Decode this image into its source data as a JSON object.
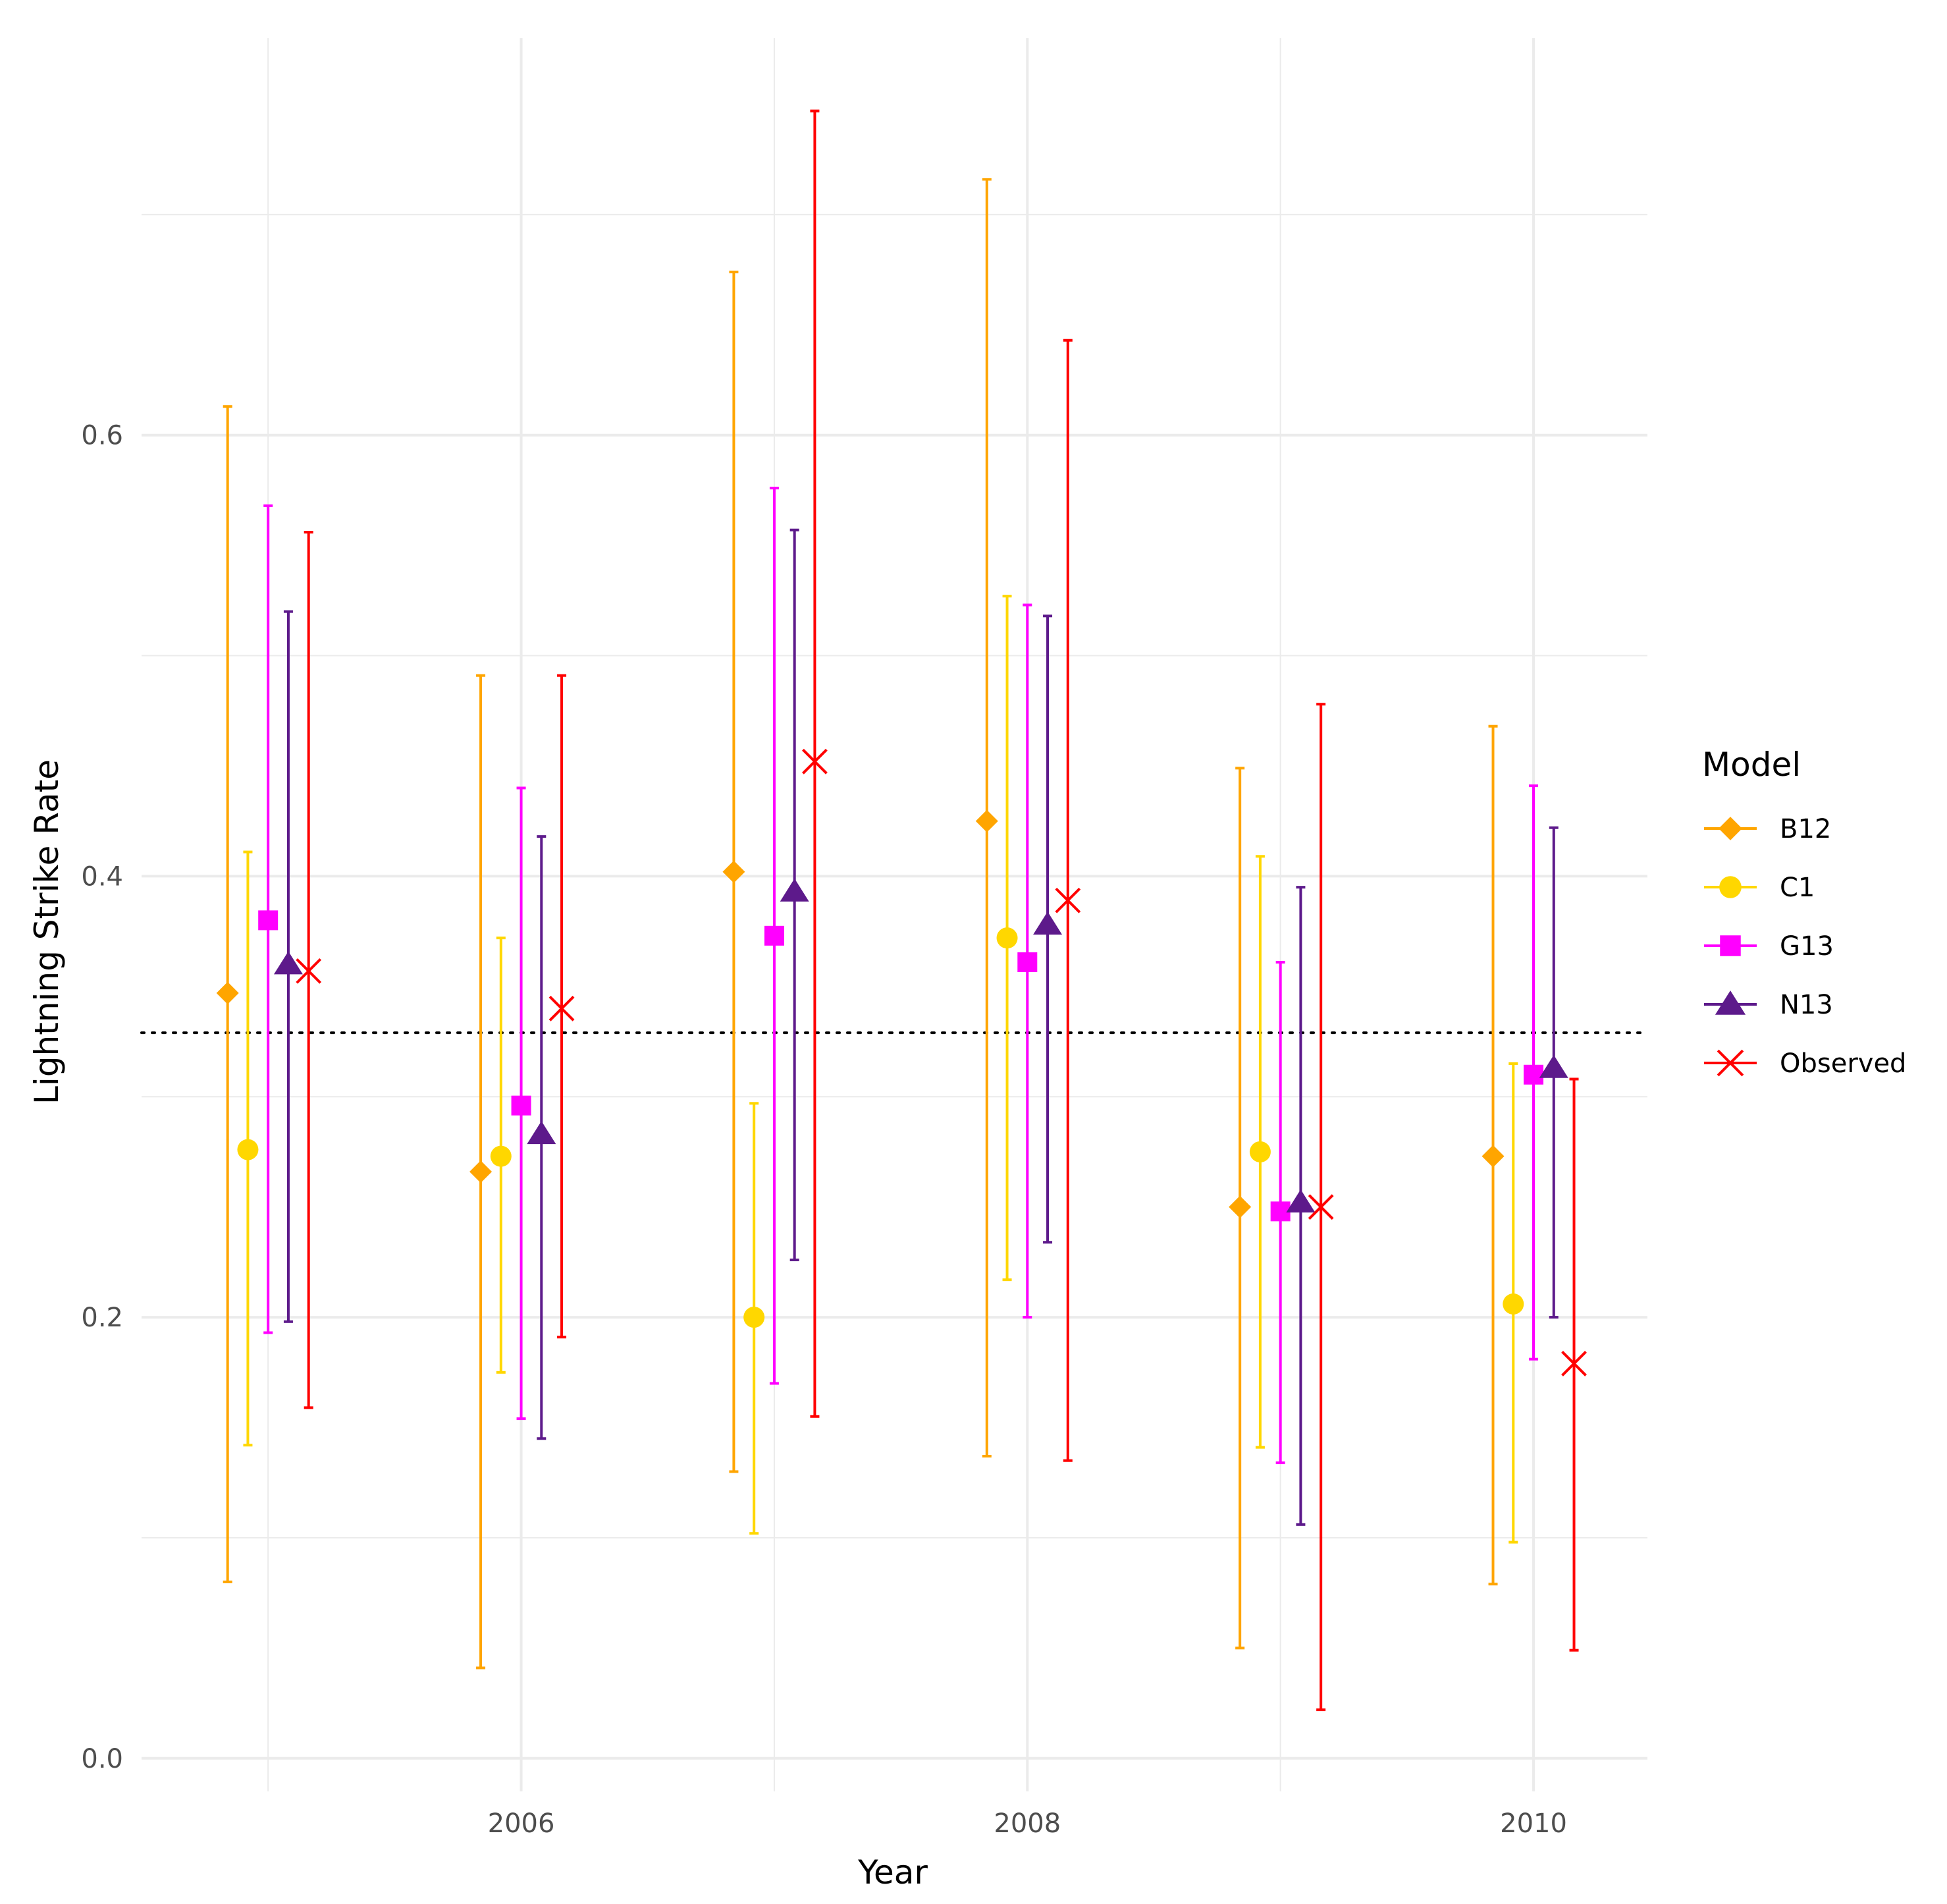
{
  "chart_data": {
    "type": "errorbar",
    "title": "",
    "xlabel": "Year",
    "ylabel": "Lightning Strike Rate",
    "xlim": [
      2004.5,
      2010.45
    ],
    "ylim": [
      -0.015,
      0.78
    ],
    "x_ticks": [
      2006,
      2008,
      2010
    ],
    "x_tick_labels": [
      "2006",
      "2008",
      "2010"
    ],
    "x_minor_gridlines": [
      2005,
      2007,
      2009
    ],
    "y_ticks": [
      0.0,
      0.2,
      0.4,
      0.6
    ],
    "y_tick_labels": [
      "0.0",
      "0.2",
      "0.4",
      "0.6"
    ],
    "y_minor_gridlines": [
      0.1,
      0.3,
      0.5,
      0.7
    ],
    "reference_line": {
      "y": 0.329,
      "style": "dotted",
      "color": "#000000"
    },
    "dodge_offsets": [
      -0.16,
      -0.08,
      0.0,
      0.08,
      0.16
    ],
    "years": [
      2005,
      2006,
      2007,
      2008,
      2009,
      2010
    ],
    "legend": {
      "title": "Model",
      "position": "right"
    },
    "series": [
      {
        "name": "B12",
        "color": "#FFA500",
        "shape": "diamond",
        "points": [
          {
            "year": 2005,
            "value": 0.347,
            "lower": 0.08,
            "upper": 0.613
          },
          {
            "year": 2006,
            "value": 0.266,
            "lower": 0.041,
            "upper": 0.491
          },
          {
            "year": 2007,
            "value": 0.402,
            "lower": 0.13,
            "upper": 0.674
          },
          {
            "year": 2008,
            "value": 0.425,
            "lower": 0.137,
            "upper": 0.716
          },
          {
            "year": 2009,
            "value": 0.25,
            "lower": 0.05,
            "upper": 0.449
          },
          {
            "year": 2010,
            "value": 0.273,
            "lower": 0.079,
            "upper": 0.468
          }
        ]
      },
      {
        "name": "C1",
        "color": "#FFD700",
        "shape": "circle",
        "points": [
          {
            "year": 2005,
            "value": 0.276,
            "lower": 0.142,
            "upper": 0.411
          },
          {
            "year": 2006,
            "value": 0.273,
            "lower": 0.175,
            "upper": 0.372
          },
          {
            "year": 2007,
            "value": 0.2,
            "lower": 0.102,
            "upper": 0.297
          },
          {
            "year": 2008,
            "value": 0.372,
            "lower": 0.217,
            "upper": 0.527
          },
          {
            "year": 2009,
            "value": 0.275,
            "lower": 0.141,
            "upper": 0.409
          },
          {
            "year": 2010,
            "value": 0.206,
            "lower": 0.098,
            "upper": 0.315
          }
        ]
      },
      {
        "name": "G13",
        "color": "#FF00FF",
        "shape": "square",
        "points": [
          {
            "year": 2005,
            "value": 0.38,
            "lower": 0.193,
            "upper": 0.568
          },
          {
            "year": 2006,
            "value": 0.296,
            "lower": 0.154,
            "upper": 0.44
          },
          {
            "year": 2007,
            "value": 0.373,
            "lower": 0.17,
            "upper": 0.576
          },
          {
            "year": 2008,
            "value": 0.361,
            "lower": 0.2,
            "upper": 0.523
          },
          {
            "year": 2009,
            "value": 0.248,
            "lower": 0.134,
            "upper": 0.361
          },
          {
            "year": 2010,
            "value": 0.31,
            "lower": 0.181,
            "upper": 0.441
          }
        ]
      },
      {
        "name": "N13",
        "color": "#5D1A8B",
        "shape": "triangle",
        "points": [
          {
            "year": 2005,
            "value": 0.36,
            "lower": 0.198,
            "upper": 0.52
          },
          {
            "year": 2006,
            "value": 0.283,
            "lower": 0.145,
            "upper": 0.418
          },
          {
            "year": 2007,
            "value": 0.393,
            "lower": 0.226,
            "upper": 0.557
          },
          {
            "year": 2008,
            "value": 0.378,
            "lower": 0.234,
            "upper": 0.518
          },
          {
            "year": 2009,
            "value": 0.252,
            "lower": 0.106,
            "upper": 0.395
          },
          {
            "year": 2010,
            "value": 0.313,
            "lower": 0.2,
            "upper": 0.422
          }
        ]
      },
      {
        "name": "Observed",
        "color": "#FF0000",
        "shape": "cross",
        "points": [
          {
            "year": 2005,
            "value": 0.357,
            "lower": 0.159,
            "upper": 0.556
          },
          {
            "year": 2006,
            "value": 0.34,
            "lower": 0.191,
            "upper": 0.491
          },
          {
            "year": 2007,
            "value": 0.452,
            "lower": 0.155,
            "upper": 0.747
          },
          {
            "year": 2008,
            "value": 0.389,
            "lower": 0.135,
            "upper": 0.643
          },
          {
            "year": 2009,
            "value": 0.25,
            "lower": 0.022,
            "upper": 0.478
          },
          {
            "year": 2010,
            "value": 0.179,
            "lower": 0.049,
            "upper": 0.308
          }
        ]
      }
    ]
  }
}
